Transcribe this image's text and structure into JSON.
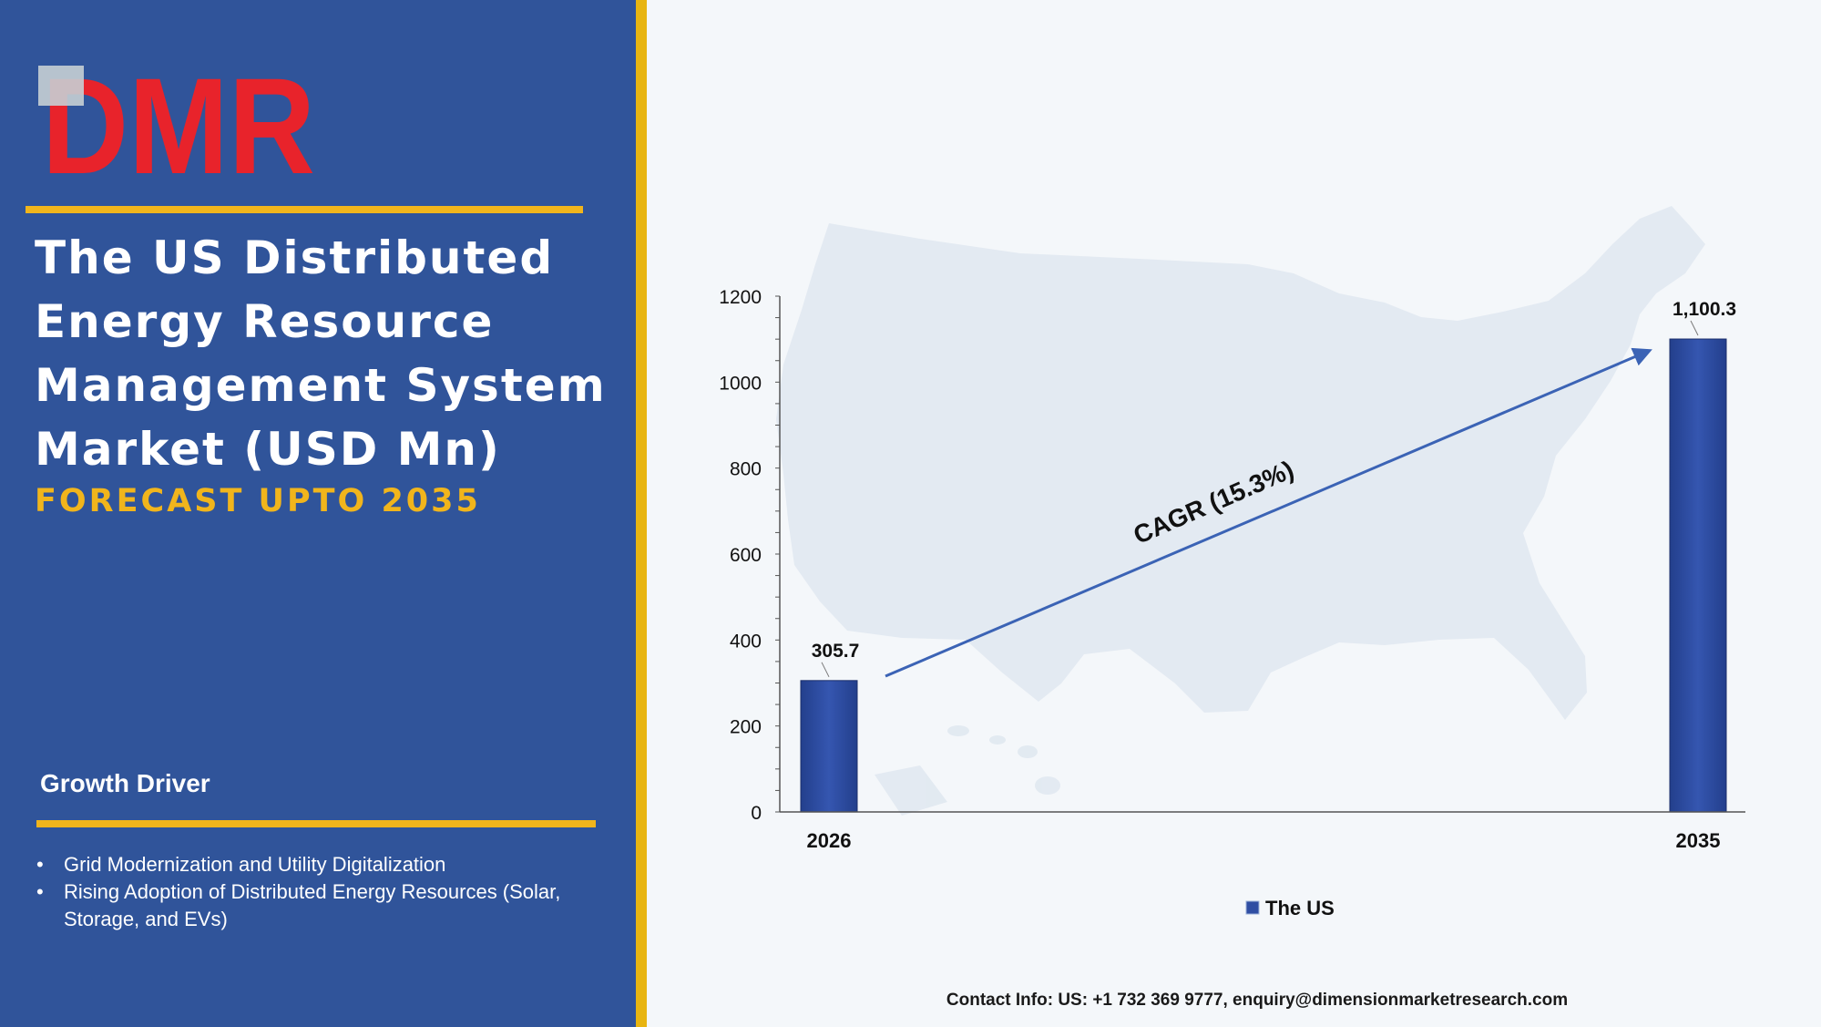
{
  "brand": {
    "logo_text": "DMR",
    "colors": {
      "logo_red": "#e8232b",
      "logo_grey": "#c7cfd4",
      "panel_blue": "#30549a",
      "accent_gold": "#f1b51c"
    }
  },
  "title": {
    "lines": [
      "The US Distributed",
      "Energy Resource",
      "Management System",
      "Market (USD Mn)"
    ],
    "forecast": "FORECAST UPTO 2035"
  },
  "growth": {
    "heading": "Growth Driver",
    "items": [
      "Grid Modernization and Utility Digitalization",
      "Rising Adoption of Distributed Energy Resources (Solar, Storage, and EVs)"
    ]
  },
  "chart_data": {
    "type": "bar",
    "categories": [
      "2026",
      "2035"
    ],
    "series": [
      {
        "name": "The US",
        "values": [
          305.7,
          1100.3
        ],
        "data_labels": [
          "305.7",
          "1,100.3"
        ],
        "color": "#2f4ea3"
      }
    ],
    "yticks": [
      "0",
      "200",
      "400",
      "600",
      "800",
      "1000",
      "1200"
    ],
    "ylim": [
      0,
      1200
    ],
    "annotation": "CAGR (15.3%)",
    "legend_position": "bottom-center",
    "grid": false,
    "background": "US map silhouette"
  },
  "footer": {
    "contact": "Contact Info: US: +1 732 369 9777, enquiry@dimensionmarketresearch.com"
  }
}
